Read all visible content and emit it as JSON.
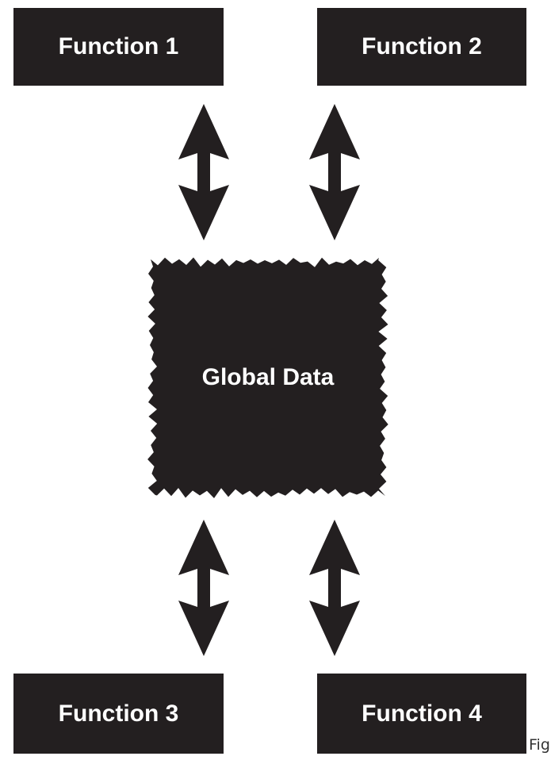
{
  "diagram": {
    "functions": [
      {
        "label": "Function 1"
      },
      {
        "label": "Function 2"
      },
      {
        "label": "Function 3"
      },
      {
        "label": "Function 4"
      }
    ],
    "global_data": {
      "label": "Global Data"
    },
    "connections": [
      {
        "from": "Function 1",
        "to": "Global Data",
        "direction": "bidirectional"
      },
      {
        "from": "Function 2",
        "to": "Global Data",
        "direction": "bidirectional"
      },
      {
        "from": "Function 3",
        "to": "Global Data",
        "direction": "bidirectional"
      },
      {
        "from": "Function 4",
        "to": "Global Data",
        "direction": "bidirectional"
      }
    ],
    "caption": "Fig"
  },
  "colors": {
    "box_fill": "#231f20",
    "text": "#ffffff",
    "background": "#ffffff"
  }
}
